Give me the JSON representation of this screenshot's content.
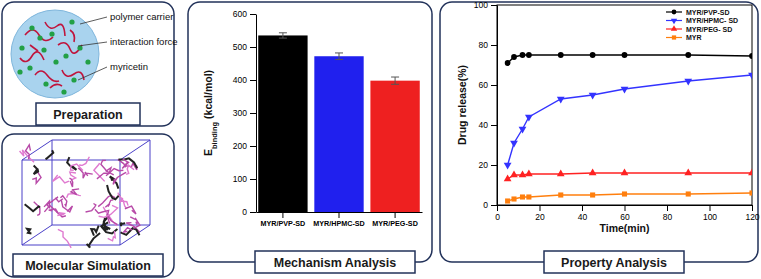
{
  "panels": {
    "preparation": {
      "title": "Preparation",
      "labels": [
        "polymer carrier",
        "interaction force",
        "myricetin"
      ]
    },
    "simulation": {
      "title": "Molecular Simulation"
    },
    "mechanism": {
      "title": "Mechanism Analysis"
    },
    "property": {
      "title": "Property Analysis"
    }
  },
  "chart_data": [
    {
      "type": "bar",
      "y_label": {
        "main": "E",
        "sub": "binding",
        "unit": "(kcal/mol)"
      },
      "categories": [
        "MYR/PVP-SD",
        "MYR/HPMC-SD",
        "MYR/PEG-SD"
      ],
      "values": [
        535,
        472,
        398
      ],
      "errors": [
        8,
        10,
        11
      ],
      "colors": [
        "#000000",
        "#2020ee",
        "#ee2020"
      ],
      "ylim": [
        0,
        600
      ],
      "yticks": [
        0,
        100,
        200,
        300,
        400,
        500,
        600
      ]
    },
    {
      "type": "line",
      "x_label": "Time(min)",
      "y_label": "Drug release(%)",
      "x": [
        5,
        8,
        12,
        15,
        30,
        45,
        60,
        90,
        120
      ],
      "series": [
        {
          "name": "MYR/PVP-SD",
          "color": "#000000",
          "marker": "circle",
          "values": [
            71,
            74,
            75,
            75,
            75,
            75,
            75,
            75,
            74.5
          ]
        },
        {
          "name": "MYR/HPMC- SD",
          "color": "#3333ff",
          "marker": "triangle-down",
          "values": [
            20,
            31,
            38,
            44,
            53,
            55,
            58,
            62,
            65
          ]
        },
        {
          "name": "MYR/PEG- SD",
          "color": "#ff2222",
          "marker": "triangle-up",
          "values": [
            13,
            15,
            15,
            15.5,
            15.5,
            16,
            16,
            16,
            16
          ]
        },
        {
          "name": "MYR",
          "color": "#ff7f0e",
          "marker": "square",
          "values": [
            2,
            3,
            4,
            4,
            5,
            5,
            5.5,
            5.5,
            6
          ]
        }
      ],
      "legend": "top-right",
      "xlim": [
        0,
        120
      ],
      "xticks": [
        0,
        20,
        40,
        60,
        80,
        100,
        120
      ],
      "ylim": [
        0,
        100
      ],
      "yticks": [
        0,
        20,
        40,
        60,
        80,
        100
      ]
    }
  ]
}
